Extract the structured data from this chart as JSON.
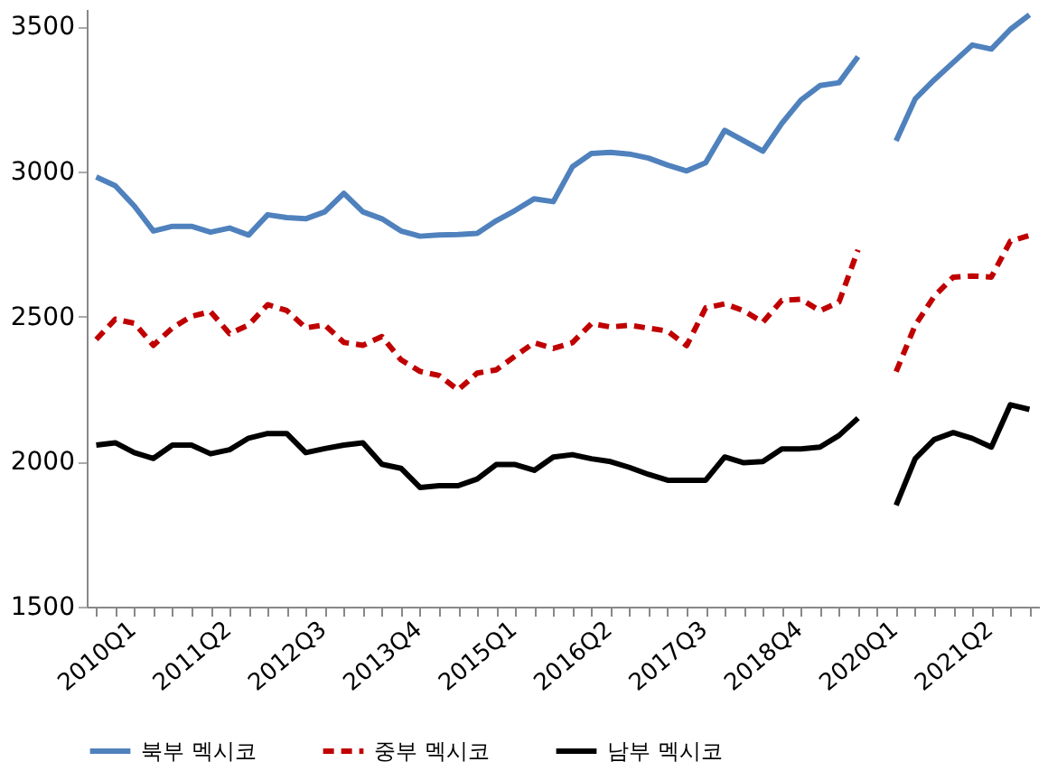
{
  "chart_data": {
    "type": "line",
    "categories": [
      "2010Q1",
      null,
      null,
      null,
      null,
      "2011Q2",
      null,
      null,
      null,
      null,
      "2012Q3",
      null,
      null,
      null,
      null,
      "2013Q4",
      null,
      null,
      null,
      null,
      "2015Q1",
      null,
      null,
      null,
      null,
      "2016Q2",
      null,
      null,
      null,
      null,
      "2017Q3",
      null,
      null,
      null,
      null,
      "2018Q4",
      null,
      null,
      null,
      null,
      "2020Q1",
      null,
      null,
      null,
      null,
      "2021Q2",
      null,
      null,
      null,
      null
    ],
    "series": [
      {
        "name": "북부 멕시코",
        "color": "#4f81bd",
        "line_style": "solid",
        "values": [
          2981,
          2951,
          2881,
          2795,
          2811,
          2811,
          2791,
          2805,
          2781,
          2851,
          2841,
          2837,
          2861,
          2925,
          2861,
          2837,
          2795,
          2777,
          2781,
          2783,
          2787,
          2830,
          2866,
          2906,
          2896,
          3016,
          3062,
          3066,
          3060,
          3046,
          3022,
          3002,
          3030,
          3142,
          3106,
          3070,
          3166,
          3246,
          3296,
          3306,
          3396,
          null,
          3106,
          3250,
          3316,
          3376,
          3436,
          3422,
          3490,
          3540
        ]
      },
      {
        "name": "중부 멕시코",
        "color": "#c00000",
        "line_style": "dashed",
        "values": [
          2421,
          2491,
          2477,
          2401,
          2461,
          2501,
          2517,
          2441,
          2471,
          2541,
          2521,
          2461,
          2471,
          2411,
          2401,
          2431,
          2351,
          2311,
          2297,
          2247,
          2305,
          2316,
          2364,
          2410,
          2390,
          2410,
          2476,
          2464,
          2470,
          2460,
          2450,
          2400,
          2530,
          2544,
          2520,
          2480,
          2556,
          2560,
          2520,
          2550,
          2730,
          null,
          2310,
          2470,
          2570,
          2636,
          2640,
          2636,
          2760,
          2780
        ]
      },
      {
        "name": "남부 멕시코",
        "color": "#000000",
        "line_style": "solid",
        "values": [
          2057,
          2065,
          2031,
          2011,
          2057,
          2057,
          2027,
          2041,
          2081,
          2097,
          2097,
          2031,
          2045,
          2057,
          2065,
          1991,
          1977,
          1911,
          1917,
          1917,
          1940,
          1990,
          1990,
          1970,
          2016,
          2024,
          2010,
          2000,
          1980,
          1956,
          1936,
          1936,
          1936,
          2016,
          1996,
          2000,
          2044,
          2044,
          2050,
          2090,
          2150,
          null,
          1850,
          2010,
          2076,
          2100,
          2080,
          2050,
          2196,
          2180
        ]
      }
    ],
    "ylim": [
      1500,
      3560
    ],
    "yticks": [
      1500,
      2000,
      2500,
      3000,
      3500
    ],
    "grid": false,
    "legend": "bottom"
  }
}
